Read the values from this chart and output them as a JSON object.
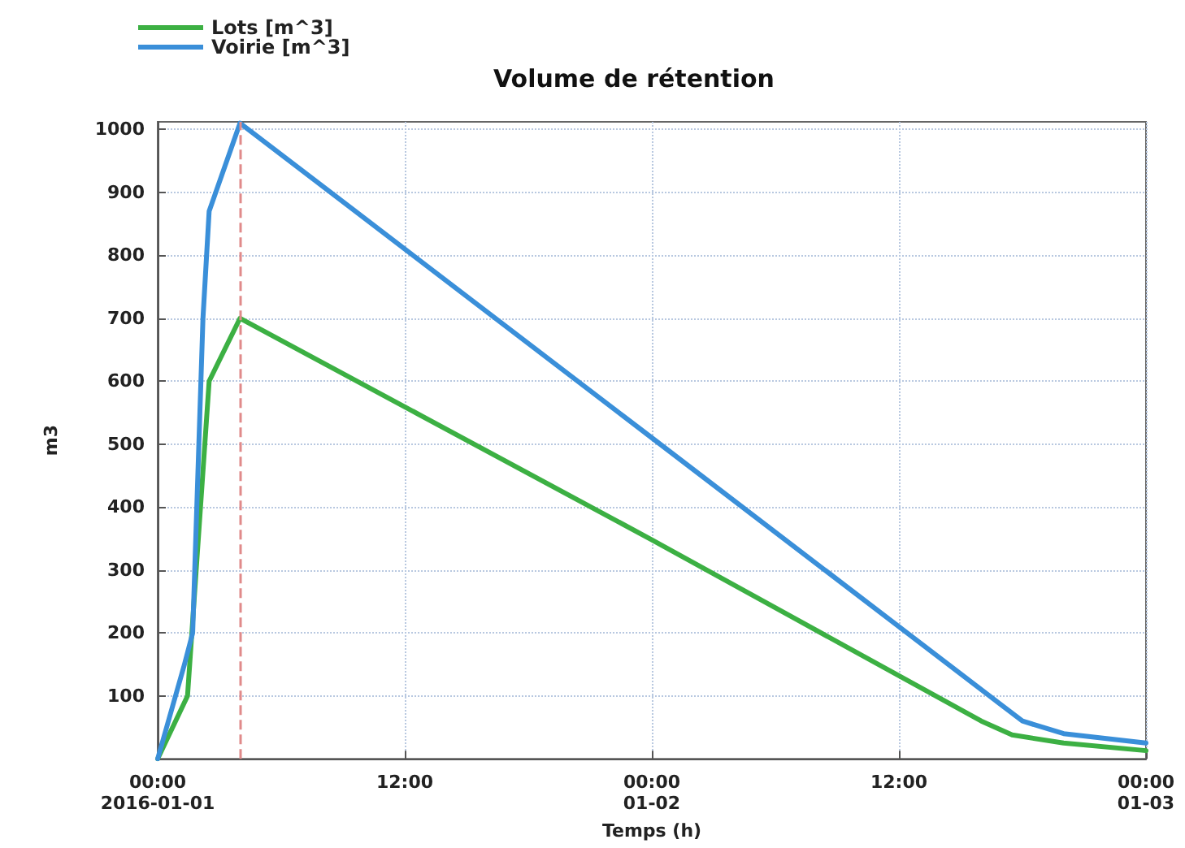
{
  "chart_data": {
    "type": "line",
    "title": "Volume de rétention",
    "xlabel": "Temps (h)",
    "ylabel": "m3",
    "xlim": [
      "2016-01-01T00:00",
      "2016-01-03T00:00"
    ],
    "xticks": [
      {
        "value": "2016-01-01T00:00",
        "label": "00:00\n2016-01-01"
      },
      {
        "value": "2016-01-01T12:00",
        "label": "12:00"
      },
      {
        "value": "2016-01-02T00:00",
        "label": "00:00\n01-02"
      },
      {
        "value": "2016-01-02T12:00",
        "label": "12:00"
      },
      {
        "value": "2016-01-03T00:00",
        "label": "00:00\n01-03"
      }
    ],
    "ylim": [
      0,
      1012
    ],
    "yticks": [
      100,
      200,
      300,
      400,
      500,
      600,
      700,
      800,
      900,
      1000
    ],
    "series": [
      {
        "name": "Lots [m^3]",
        "color": "#3cb043",
        "x": [
          "2016-01-01T00:00",
          "2016-01-01T01:27",
          "2016-01-01T02:30",
          "2016-01-01T04:00",
          "2016-01-02T00:00",
          "2016-01-02T16:00",
          "2016-01-02T17:30",
          "2016-01-02T20:00",
          "2016-01-03T00:00"
        ],
        "values": [
          0,
          100,
          600,
          700,
          348,
          60,
          38,
          25,
          13
        ]
      },
      {
        "name": "Voirie [m^3]",
        "color": "#3a8fd9",
        "x": [
          "2016-01-01T00:00",
          "2016-01-01T01:18",
          "2016-01-01T01:42",
          "2016-01-01T02:12",
          "2016-01-01T02:30",
          "2016-01-01T04:00",
          "2016-01-02T00:00",
          "2016-01-02T17:00",
          "2016-01-02T18:00",
          "2016-01-02T20:00",
          "2016-01-03T00:00"
        ],
        "values": [
          0,
          150,
          200,
          700,
          870,
          1010,
          510,
          85,
          60,
          40,
          25
        ]
      }
    ],
    "ref_lines": [
      {
        "axis": "x",
        "value": "2016-01-01T04:00",
        "color": "#e08a8a",
        "line_style": "dashed"
      }
    ],
    "grid": true,
    "legend": "top left",
    "marker": "none",
    "line_style": "solid"
  }
}
